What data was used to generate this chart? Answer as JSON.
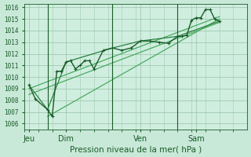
{
  "background_color": "#c8e8d8",
  "grid_color": "#a0c8b0",
  "plot_bg_color": "#d0eee0",
  "line_color_dark": "#1a5c28",
  "line_color_mid": "#2a8040",
  "line_color_light": "#4aaa60",
  "xlabel": "Pression niveau de la mer( hPa )",
  "ylim": [
    1005.5,
    1016.3
  ],
  "yticks": [
    1006,
    1007,
    1008,
    1009,
    1010,
    1011,
    1012,
    1013,
    1014,
    1015,
    1016
  ],
  "xtick_labels": [
    "Jeu",
    "Dim",
    "Ven",
    "Sam"
  ],
  "xtick_positions": [
    0.5,
    4.5,
    12.5,
    18.5
  ],
  "xlim": [
    0,
    24
  ],
  "vlines_x": [
    2.5,
    9.5,
    16.5
  ],
  "series_main_x": [
    0.5,
    1.2,
    2.5,
    3.0,
    3.5,
    4.0,
    4.5,
    5.0,
    5.5,
    6.0,
    6.5,
    7.0,
    7.5,
    8.5,
    9.5,
    10.5,
    11.5,
    12.5,
    13.5,
    14.5,
    15.5,
    16.5,
    17.0,
    17.5,
    18.0,
    18.5,
    19.0,
    19.5,
    20.0,
    20.5,
    21.0
  ],
  "series_main_y": [
    1009.3,
    1008.1,
    1007.2,
    1006.6,
    1010.5,
    1010.5,
    1011.3,
    1011.4,
    1010.7,
    1011.0,
    1011.4,
    1011.4,
    1010.7,
    1012.3,
    1012.5,
    1012.3,
    1012.5,
    1013.1,
    1013.1,
    1013.0,
    1012.9,
    1013.5,
    1013.5,
    1013.6,
    1014.9,
    1015.1,
    1015.1,
    1015.8,
    1015.8,
    1015.0,
    1014.8
  ],
  "trend1_x": [
    0.5,
    21.0
  ],
  "trend1_y": [
    1009.0,
    1015.2
  ],
  "trend2_x": [
    2.5,
    21.0
  ],
  "trend2_y": [
    1006.6,
    1015.0
  ],
  "trend3_x": [
    0.5,
    21.0
  ],
  "trend3_y": [
    1008.5,
    1014.7
  ],
  "smooth_x": [
    0.5,
    2.5,
    4.5,
    9.5,
    12.5,
    16.5,
    21.0
  ],
  "smooth_y": [
    1009.3,
    1007.2,
    1011.3,
    1012.5,
    1013.1,
    1013.5,
    1014.8
  ]
}
